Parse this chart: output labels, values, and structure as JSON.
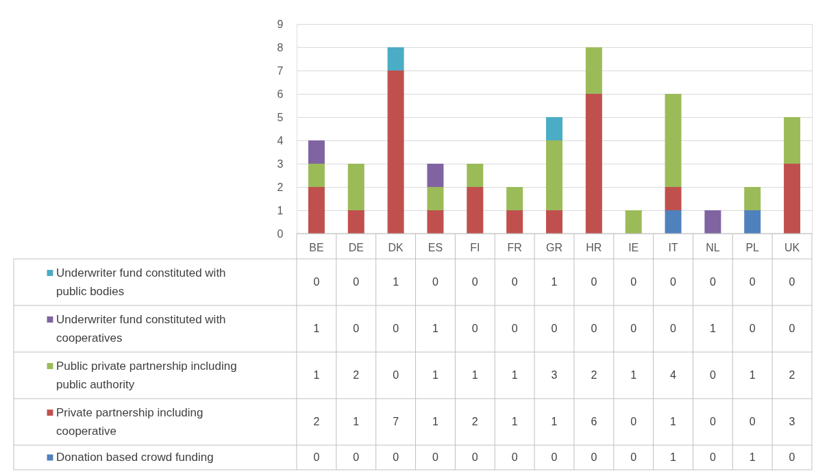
{
  "chart_data": {
    "type": "bar",
    "stacked": true,
    "data_labels": true,
    "legend": "bottom",
    "grid": "y",
    "categories": [
      "BE",
      "DE",
      "DK",
      "ES",
      "FI",
      "FR",
      "GR",
      "HR",
      "IE",
      "IT",
      "NL",
      "PL",
      "UK"
    ],
    "ylim": [
      0,
      9
    ],
    "yticks": [
      0,
      1,
      2,
      3,
      4,
      5,
      6,
      7,
      8,
      9
    ],
    "series": [
      {
        "name": "Donation based crowd funding",
        "color": "#4f81bd",
        "values": [
          0,
          0,
          0,
          0,
          0,
          0,
          0,
          0,
          0,
          1,
          0,
          1,
          0
        ]
      },
      {
        "name": "Private partnership including cooperative",
        "color": "#c0504d",
        "values": [
          2,
          1,
          7,
          1,
          2,
          1,
          1,
          6,
          0,
          1,
          0,
          0,
          3
        ]
      },
      {
        "name": "Public private partnership including public authority",
        "color": "#9bbb59",
        "values": [
          1,
          2,
          0,
          1,
          1,
          1,
          3,
          2,
          1,
          4,
          0,
          1,
          2
        ]
      },
      {
        "name": "Underwriter fund constituted with cooperatives",
        "color": "#8064a2",
        "values": [
          1,
          0,
          0,
          1,
          0,
          0,
          0,
          0,
          0,
          0,
          1,
          0,
          0
        ]
      },
      {
        "name": "Underwriter fund constituted with public bodies",
        "color": "#4bacc6",
        "values": [
          0,
          0,
          1,
          0,
          0,
          0,
          1,
          0,
          0,
          0,
          0,
          0,
          0
        ]
      }
    ]
  }
}
